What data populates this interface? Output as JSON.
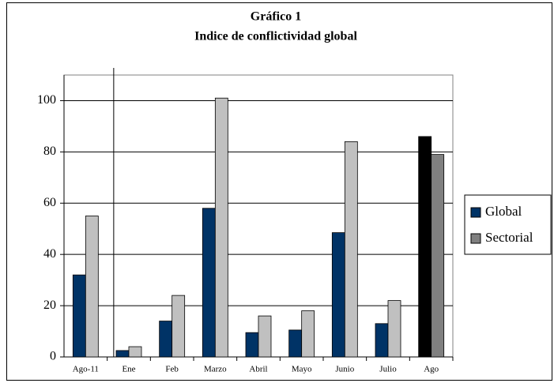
{
  "chart_data": {
    "type": "bar",
    "title": "Gráfico 1",
    "subtitle": "Indice de conflictividad global",
    "categories": [
      "Ago-11",
      "Ene",
      "Feb",
      "Marzo",
      "Abril",
      "Mayo",
      "Junio",
      "Julio",
      "Ago"
    ],
    "series": [
      {
        "name": "Global",
        "color": "#003366",
        "colors": [
          "#003366",
          "#003366",
          "#003366",
          "#003366",
          "#003366",
          "#003366",
          "#003366",
          "#003366",
          "#000000"
        ],
        "values": [
          32,
          2.5,
          14,
          58,
          9.5,
          10.5,
          48.5,
          13,
          86
        ]
      },
      {
        "name": "Sectorial",
        "color": "#808080",
        "colors": [
          "#c0c0c0",
          "#c0c0c0",
          "#c0c0c0",
          "#c0c0c0",
          "#c0c0c0",
          "#c0c0c0",
          "#c0c0c0",
          "#c0c0c0",
          "#808080"
        ],
        "values": [
          55,
          4,
          24,
          101,
          16,
          18,
          84,
          22,
          79
        ]
      }
    ],
    "ylim": [
      0,
      110
    ],
    "yticks": [
      0,
      20,
      40,
      60,
      80,
      100
    ],
    "grid": true,
    "legend": "right"
  }
}
